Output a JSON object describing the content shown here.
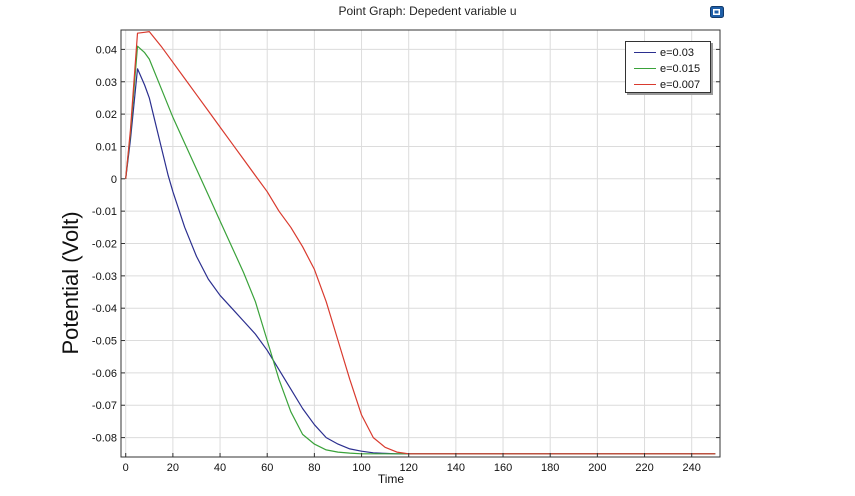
{
  "chart_data": {
    "type": "line",
    "title": "Point Graph: Depedent variable u",
    "xlabel": "Time",
    "ylabel": "Potential (Volt)",
    "xlim": [
      -2,
      252
    ],
    "ylim": [
      -0.086,
      0.046
    ],
    "xticks": [
      0,
      20,
      40,
      60,
      80,
      100,
      120,
      140,
      160,
      180,
      200,
      220,
      240
    ],
    "xtick_labels": [
      "0",
      "20",
      "40",
      "60",
      "80",
      "100",
      "120",
      "140",
      "160",
      "180",
      "200",
      "220",
      "240"
    ],
    "yticks": [
      0.04,
      0.03,
      0.02,
      0.01,
      0,
      -0.01,
      -0.02,
      -0.03,
      -0.04,
      -0.05,
      -0.06,
      -0.07,
      -0.08
    ],
    "ytick_labels": [
      "0.04",
      "0.03",
      "0.02",
      "0.01",
      "0",
      "-0.01",
      "-0.02",
      "-0.03",
      "-0.04",
      "-0.05",
      "-0.06",
      "-0.07",
      "-0.08"
    ],
    "grid": true,
    "legend_position": "top-right",
    "series": [
      {
        "name": "e=0.03",
        "color": "#2b2f8f",
        "x": [
          0,
          2,
          5,
          8,
          10,
          12,
          15,
          18,
          20,
          25,
          30,
          35,
          40,
          45,
          50,
          55,
          60,
          65,
          70,
          75,
          80,
          85,
          90,
          95,
          100,
          105,
          110,
          115,
          120,
          125,
          130,
          250
        ],
        "y": [
          0,
          0.012,
          0.034,
          0.029,
          0.025,
          0.019,
          0.01,
          0.001,
          -0.004,
          -0.015,
          -0.024,
          -0.031,
          -0.036,
          -0.04,
          -0.044,
          -0.048,
          -0.053,
          -0.059,
          -0.065,
          -0.071,
          -0.076,
          -0.08,
          -0.082,
          -0.0835,
          -0.0842,
          -0.0847,
          -0.0849,
          -0.085,
          -0.085,
          -0.085,
          -0.085,
          -0.085
        ]
      },
      {
        "name": "e=0.015",
        "color": "#3aa23a",
        "x": [
          0,
          2,
          5,
          8,
          10,
          15,
          20,
          25,
          30,
          35,
          40,
          45,
          50,
          55,
          60,
          65,
          70,
          75,
          80,
          85,
          90,
          95,
          100,
          110,
          250
        ],
        "y": [
          0,
          0.014,
          0.041,
          0.039,
          0.037,
          0.028,
          0.019,
          0.011,
          0.003,
          -0.005,
          -0.013,
          -0.021,
          -0.029,
          -0.038,
          -0.05,
          -0.062,
          -0.072,
          -0.079,
          -0.082,
          -0.0838,
          -0.0845,
          -0.0848,
          -0.085,
          -0.085,
          -0.085
        ]
      },
      {
        "name": "e=0.007",
        "color": "#d93a2e",
        "x": [
          0,
          2,
          5,
          8,
          10,
          15,
          20,
          25,
          30,
          35,
          40,
          45,
          50,
          55,
          60,
          65,
          70,
          75,
          80,
          85,
          90,
          95,
          100,
          105,
          110,
          115,
          120,
          125,
          130,
          250
        ],
        "y": [
          0,
          0.015,
          0.045,
          0.0453,
          0.0455,
          0.041,
          0.036,
          0.031,
          0.026,
          0.021,
          0.016,
          0.011,
          0.006,
          0.001,
          -0.004,
          -0.01,
          -0.015,
          -0.021,
          -0.028,
          -0.038,
          -0.05,
          -0.062,
          -0.073,
          -0.08,
          -0.083,
          -0.0845,
          -0.085,
          -0.085,
          -0.085,
          -0.085
        ]
      }
    ]
  }
}
